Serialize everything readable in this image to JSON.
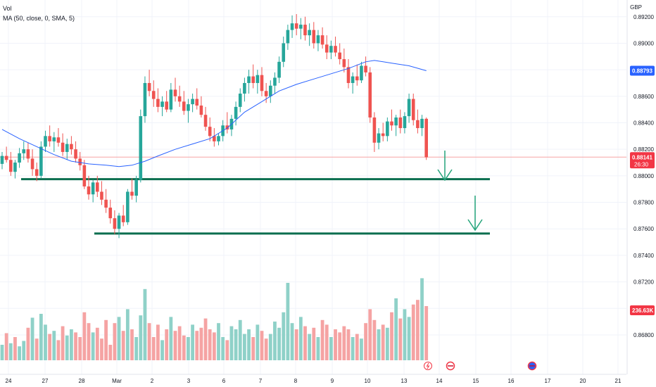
{
  "legend": {
    "volume": "Vol",
    "ma": "MA (50, close, 0, SMA, 5)"
  },
  "currency": "GBP",
  "colors": {
    "up": "#26a69a",
    "down": "#ef5350",
    "ma": "#2962ff",
    "support": "#0b6e4f",
    "arrow": "#24a47a",
    "volUp": "#8fd1c8",
    "volDown": "#f5a3a3",
    "priceLine": "#f7a4a4"
  },
  "chart_data": {
    "type": "candlestick",
    "price_axis": {
      "ylim": [
        0.8663,
        0.8922
      ],
      "ticks": [
        {
          "v": 0.892,
          "t": "0.89200"
        },
        {
          "v": 0.89,
          "t": "0.89000"
        },
        {
          "v": 0.888,
          "t": "0.88800"
        },
        {
          "v": 0.886,
          "t": "0.88600"
        },
        {
          "v": 0.884,
          "t": "0.88400"
        },
        {
          "v": 0.882,
          "t": "0.88200"
        },
        {
          "v": 0.88,
          "t": "0.88000"
        },
        {
          "v": 0.878,
          "t": "0.87800"
        },
        {
          "v": 0.876,
          "t": "0.87600"
        },
        {
          "v": 0.874,
          "t": "0.87400"
        },
        {
          "v": 0.872,
          "t": "0.87200"
        },
        {
          "v": 0.87,
          "t": "0.87000"
        },
        {
          "v": 0.868,
          "t": "0.86800"
        }
      ]
    },
    "date_axis": [
      "24",
      "27",
      "28",
      "Mar",
      "2",
      "3",
      "6",
      "7",
      "8",
      "9",
      "10",
      "13",
      "14",
      "15",
      "16",
      "17",
      "20",
      "21"
    ],
    "last_price": {
      "value": 0.88141,
      "label": "0.88141",
      "countdown": "26:30"
    },
    "ma_value": {
      "value": 0.88793,
      "label": "0.88793"
    },
    "volume_value": {
      "label": "236.63K"
    },
    "support_levels": [
      0.87975,
      0.87565
    ],
    "candles": [
      [
        0.8809,
        0.8818,
        0.8805,
        0.8815
      ],
      [
        0.8815,
        0.8822,
        0.881,
        0.8812
      ],
      [
        0.8812,
        0.8818,
        0.88,
        0.8803
      ],
      [
        0.8803,
        0.8812,
        0.8798,
        0.881
      ],
      [
        0.881,
        0.8821,
        0.8806,
        0.8817
      ],
      [
        0.8817,
        0.8826,
        0.8812,
        0.882
      ],
      [
        0.882,
        0.8825,
        0.881,
        0.8813
      ],
      [
        0.8813,
        0.882,
        0.88,
        0.8805
      ],
      [
        0.8805,
        0.881,
        0.8796,
        0.88
      ],
      [
        0.88,
        0.8826,
        0.8798,
        0.8822
      ],
      [
        0.8822,
        0.8834,
        0.8818,
        0.883
      ],
      [
        0.883,
        0.8838,
        0.8822,
        0.8826
      ],
      [
        0.8826,
        0.8833,
        0.8818,
        0.8829
      ],
      [
        0.8829,
        0.8836,
        0.8822,
        0.8825
      ],
      [
        0.8825,
        0.8832,
        0.8815,
        0.8818
      ],
      [
        0.8818,
        0.8828,
        0.8812,
        0.8824
      ],
      [
        0.8824,
        0.883,
        0.8816,
        0.882
      ],
      [
        0.882,
        0.8826,
        0.881,
        0.8813
      ],
      [
        0.8813,
        0.8818,
        0.8804,
        0.8808
      ],
      [
        0.8808,
        0.8812,
        0.879,
        0.8792
      ],
      [
        0.8792,
        0.88,
        0.8782,
        0.8786
      ],
      [
        0.8786,
        0.8797,
        0.878,
        0.8795
      ],
      [
        0.8795,
        0.88,
        0.8784,
        0.8788
      ],
      [
        0.8788,
        0.8796,
        0.8778,
        0.8782
      ],
      [
        0.8782,
        0.879,
        0.8772,
        0.8776
      ],
      [
        0.8776,
        0.8782,
        0.8764,
        0.8768
      ],
      [
        0.8768,
        0.8774,
        0.8756,
        0.876
      ],
      [
        0.876,
        0.8772,
        0.8753,
        0.877
      ],
      [
        0.877,
        0.8778,
        0.8762,
        0.8765
      ],
      [
        0.8765,
        0.879,
        0.8763,
        0.8788
      ],
      [
        0.8788,
        0.8798,
        0.8782,
        0.8785
      ],
      [
        0.8785,
        0.88,
        0.878,
        0.8797
      ],
      [
        0.8797,
        0.885,
        0.8795,
        0.8845
      ],
      [
        0.8845,
        0.8875,
        0.884,
        0.887
      ],
      [
        0.887,
        0.888,
        0.886,
        0.8864
      ],
      [
        0.8864,
        0.8872,
        0.8852,
        0.8858
      ],
      [
        0.8858,
        0.8866,
        0.8848,
        0.8852
      ],
      [
        0.8852,
        0.886,
        0.8845,
        0.8856
      ],
      [
        0.8856,
        0.8864,
        0.8848,
        0.885
      ],
      [
        0.885,
        0.887,
        0.8848,
        0.8865
      ],
      [
        0.8865,
        0.8874,
        0.8856,
        0.886
      ],
      [
        0.886,
        0.8868,
        0.8852,
        0.8856
      ],
      [
        0.8856,
        0.8864,
        0.8846,
        0.8849
      ],
      [
        0.8849,
        0.8858,
        0.884,
        0.8854
      ],
      [
        0.8854,
        0.8862,
        0.8848,
        0.8858
      ],
      [
        0.8858,
        0.8866,
        0.885,
        0.8853
      ],
      [
        0.8853,
        0.886,
        0.8844,
        0.8846
      ],
      [
        0.8846,
        0.8852,
        0.8834,
        0.8837
      ],
      [
        0.8837,
        0.8844,
        0.8826,
        0.883
      ],
      [
        0.883,
        0.8836,
        0.8822,
        0.8826
      ],
      [
        0.8826,
        0.8832,
        0.8823,
        0.883
      ],
      [
        0.883,
        0.8842,
        0.8826,
        0.8838
      ],
      [
        0.8838,
        0.8848,
        0.8832,
        0.8835
      ],
      [
        0.8835,
        0.8846,
        0.883,
        0.8843
      ],
      [
        0.8843,
        0.8856,
        0.8838,
        0.8852
      ],
      [
        0.8852,
        0.8866,
        0.8848,
        0.8862
      ],
      [
        0.8862,
        0.8874,
        0.8856,
        0.887
      ],
      [
        0.887,
        0.888,
        0.8862,
        0.8875
      ],
      [
        0.8875,
        0.8884,
        0.8866,
        0.887
      ],
      [
        0.887,
        0.888,
        0.8862,
        0.8876
      ],
      [
        0.8876,
        0.8882,
        0.886,
        0.8864
      ],
      [
        0.8864,
        0.887,
        0.8855,
        0.886
      ],
      [
        0.886,
        0.8872,
        0.8855,
        0.8868
      ],
      [
        0.8868,
        0.8878,
        0.8862,
        0.8874
      ],
      [
        0.8874,
        0.889,
        0.887,
        0.8886
      ],
      [
        0.8886,
        0.8905,
        0.8882,
        0.89
      ],
      [
        0.89,
        0.8914,
        0.8895,
        0.891
      ],
      [
        0.891,
        0.8921,
        0.8904,
        0.8915
      ],
      [
        0.8915,
        0.8922,
        0.8906,
        0.8911
      ],
      [
        0.8911,
        0.8919,
        0.8903,
        0.8914
      ],
      [
        0.8914,
        0.892,
        0.8902,
        0.8906
      ],
      [
        0.8906,
        0.8915,
        0.8898,
        0.891
      ],
      [
        0.891,
        0.8916,
        0.8896,
        0.89
      ],
      [
        0.89,
        0.891,
        0.8894,
        0.8906
      ],
      [
        0.8906,
        0.8912,
        0.8896,
        0.8899
      ],
      [
        0.8899,
        0.8906,
        0.8888,
        0.8893
      ],
      [
        0.8893,
        0.8902,
        0.8888,
        0.8898
      ],
      [
        0.8898,
        0.8905,
        0.889,
        0.8893
      ],
      [
        0.8893,
        0.89,
        0.8884,
        0.8888
      ],
      [
        0.8888,
        0.8896,
        0.8878,
        0.8882
      ],
      [
        0.8882,
        0.8888,
        0.8866,
        0.887
      ],
      [
        0.887,
        0.8878,
        0.8862,
        0.8875
      ],
      [
        0.8875,
        0.8884,
        0.8868,
        0.8872
      ],
      [
        0.8872,
        0.8886,
        0.887,
        0.8883
      ],
      [
        0.8883,
        0.889,
        0.8875,
        0.8878
      ],
      [
        0.8878,
        0.8882,
        0.884,
        0.8844
      ],
      [
        0.8844,
        0.8848,
        0.8818,
        0.8825
      ],
      [
        0.8825,
        0.8836,
        0.882,
        0.8832
      ],
      [
        0.8832,
        0.884,
        0.8826,
        0.883
      ],
      [
        0.883,
        0.8844,
        0.8826,
        0.8841
      ],
      [
        0.8841,
        0.885,
        0.8834,
        0.8838
      ],
      [
        0.8838,
        0.8846,
        0.883,
        0.8844
      ],
      [
        0.8844,
        0.885,
        0.8832,
        0.8836
      ],
      [
        0.8836,
        0.8848,
        0.8832,
        0.8845
      ],
      [
        0.8845,
        0.8862,
        0.884,
        0.8858
      ],
      [
        0.8858,
        0.8862,
        0.8838,
        0.8842
      ],
      [
        0.8842,
        0.885,
        0.8832,
        0.8836
      ],
      [
        0.8836,
        0.8846,
        0.883,
        0.8843
      ],
      [
        0.8843,
        0.8844,
        0.8812,
        0.8814
      ]
    ],
    "ma": [
      [
        0,
        0.8835
      ],
      [
        4,
        0.8828
      ],
      [
        8,
        0.8822
      ],
      [
        12,
        0.8816
      ],
      [
        16,
        0.8811
      ],
      [
        20,
        0.8809
      ],
      [
        24,
        0.8808
      ],
      [
        27,
        0.8807
      ],
      [
        30,
        0.8808
      ],
      [
        33,
        0.8811
      ],
      [
        36,
        0.8815
      ],
      [
        40,
        0.882
      ],
      [
        44,
        0.8824
      ],
      [
        48,
        0.8828
      ],
      [
        52,
        0.8836
      ],
      [
        56,
        0.8848
      ],
      [
        60,
        0.8856
      ],
      [
        64,
        0.8864
      ],
      [
        68,
        0.8869
      ],
      [
        72,
        0.8873
      ],
      [
        76,
        0.8877
      ],
      [
        80,
        0.8881
      ],
      [
        84,
        0.8886
      ],
      [
        86,
        0.8887
      ],
      [
        88,
        0.8886
      ],
      [
        90,
        0.8885
      ],
      [
        94,
        0.8883
      ],
      [
        98,
        0.88793
      ]
    ],
    "volumes": [
      [
        0,
        0.2,
        1
      ],
      [
        1,
        0.35,
        0
      ],
      [
        2,
        0.22,
        1
      ],
      [
        3,
        0.3,
        0
      ],
      [
        4,
        0.18,
        1
      ],
      [
        5,
        0.25,
        1
      ],
      [
        6,
        0.42,
        0
      ],
      [
        7,
        0.55,
        1
      ],
      [
        8,
        0.28,
        0
      ],
      [
        9,
        0.6,
        1
      ],
      [
        10,
        0.46,
        1
      ],
      [
        11,
        0.34,
        0
      ],
      [
        12,
        0.38,
        1
      ],
      [
        13,
        0.26,
        0
      ],
      [
        14,
        0.44,
        0
      ],
      [
        15,
        0.32,
        1
      ],
      [
        16,
        0.4,
        1
      ],
      [
        17,
        0.36,
        0
      ],
      [
        18,
        0.3,
        0
      ],
      [
        19,
        0.62,
        0
      ],
      [
        20,
        0.48,
        0
      ],
      [
        21,
        0.36,
        1
      ],
      [
        22,
        0.42,
        0
      ],
      [
        23,
        0.28,
        0
      ],
      [
        24,
        0.52,
        0
      ],
      [
        25,
        0.2,
        0
      ],
      [
        26,
        0.48,
        0
      ],
      [
        27,
        0.56,
        1
      ],
      [
        28,
        0.38,
        0
      ],
      [
        29,
        0.66,
        1
      ],
      [
        30,
        0.4,
        0
      ],
      [
        31,
        0.3,
        1
      ],
      [
        32,
        0.58,
        1
      ],
      [
        33,
        0.92,
        1
      ],
      [
        34,
        0.48,
        0
      ],
      [
        35,
        0.3,
        0
      ],
      [
        36,
        0.46,
        0
      ],
      [
        37,
        0.26,
        1
      ],
      [
        38,
        0.4,
        0
      ],
      [
        39,
        0.56,
        1
      ],
      [
        40,
        0.38,
        0
      ],
      [
        41,
        0.44,
        0
      ],
      [
        42,
        0.32,
        0
      ],
      [
        43,
        0.3,
        1
      ],
      [
        44,
        0.46,
        1
      ],
      [
        45,
        0.38,
        0
      ],
      [
        46,
        0.42,
        0
      ],
      [
        47,
        0.54,
        0
      ],
      [
        48,
        0.4,
        0
      ],
      [
        49,
        0.36,
        0
      ],
      [
        50,
        0.48,
        1
      ],
      [
        51,
        0.3,
        1
      ],
      [
        52,
        0.26,
        0
      ],
      [
        53,
        0.44,
        1
      ],
      [
        54,
        0.4,
        1
      ],
      [
        55,
        0.52,
        1
      ],
      [
        56,
        0.34,
        1
      ],
      [
        57,
        0.4,
        1
      ],
      [
        58,
        0.3,
        0
      ],
      [
        59,
        0.46,
        1
      ],
      [
        60,
        0.38,
        0
      ],
      [
        61,
        0.28,
        0
      ],
      [
        62,
        0.34,
        1
      ],
      [
        63,
        0.5,
        1
      ],
      [
        64,
        0.42,
        1
      ],
      [
        65,
        0.62,
        1
      ],
      [
        66,
        1.0,
        1
      ],
      [
        67,
        0.48,
        1
      ],
      [
        68,
        0.4,
        0
      ],
      [
        69,
        0.56,
        1
      ],
      [
        70,
        0.44,
        0
      ],
      [
        71,
        0.34,
        1
      ],
      [
        72,
        0.42,
        0
      ],
      [
        73,
        0.3,
        1
      ],
      [
        74,
        0.52,
        0
      ],
      [
        75,
        0.46,
        0
      ],
      [
        76,
        0.3,
        1
      ],
      [
        77,
        0.4,
        0
      ],
      [
        78,
        0.36,
        0
      ],
      [
        79,
        0.44,
        0
      ],
      [
        80,
        0.4,
        0
      ],
      [
        81,
        0.3,
        1
      ],
      [
        82,
        0.34,
        0
      ],
      [
        83,
        0.28,
        1
      ],
      [
        84,
        0.48,
        0
      ],
      [
        85,
        0.66,
        0
      ],
      [
        86,
        0.52,
        0
      ],
      [
        87,
        0.4,
        1
      ],
      [
        88,
        0.46,
        0
      ],
      [
        89,
        0.42,
        1
      ],
      [
        90,
        0.62,
        0
      ],
      [
        91,
        0.8,
        1
      ],
      [
        92,
        0.54,
        0
      ],
      [
        93,
        0.66,
        1
      ],
      [
        94,
        0.56,
        1
      ],
      [
        95,
        0.72,
        0
      ],
      [
        96,
        0.78,
        0
      ],
      [
        97,
        1.06,
        1
      ],
      [
        98,
        0.7,
        0
      ]
    ],
    "event_icons": [
      "flash-icon",
      "uk-flag-icon",
      "uk-flag-icon"
    ]
  }
}
